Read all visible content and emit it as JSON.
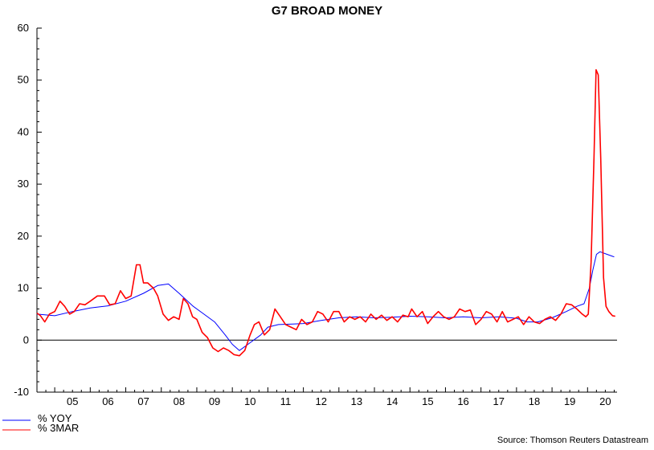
{
  "chart_data": {
    "type": "line",
    "title": "G7 BROAD MONEY",
    "source": "Source: Thomson Reuters Datastream",
    "yticks": [
      60,
      50,
      40,
      30,
      20,
      10,
      0,
      -10
    ],
    "ylim": [
      -10,
      60
    ],
    "xlim": [
      2004.5,
      2020.83
    ],
    "xticks": [
      "05",
      "06",
      "07",
      "08",
      "09",
      "10",
      "11",
      "12",
      "13",
      "14",
      "15",
      "16",
      "17",
      "18",
      "19",
      "20"
    ],
    "zero_line": true,
    "legend_position": "bottom-left",
    "series": [
      {
        "name": "% YOY",
        "color": "#0000ff",
        "points": [
          [
            2004.5,
            5.0
          ],
          [
            2005.0,
            4.7
          ],
          [
            2005.5,
            5.5
          ],
          [
            2006.0,
            6.2
          ],
          [
            2006.5,
            6.6
          ],
          [
            2007.0,
            7.5
          ],
          [
            2007.5,
            9.0
          ],
          [
            2007.9,
            10.5
          ],
          [
            2008.2,
            10.8
          ],
          [
            2008.5,
            9.0
          ],
          [
            2008.9,
            6.5
          ],
          [
            2009.2,
            5.0
          ],
          [
            2009.5,
            3.5
          ],
          [
            2009.8,
            1.0
          ],
          [
            2010.0,
            -0.8
          ],
          [
            2010.2,
            -2.0
          ],
          [
            2010.5,
            -0.5
          ],
          [
            2010.8,
            1.0
          ],
          [
            2011.0,
            2.5
          ],
          [
            2011.3,
            3.0
          ],
          [
            2011.7,
            3.1
          ],
          [
            2012.0,
            3.2
          ],
          [
            2012.5,
            3.8
          ],
          [
            2013.0,
            4.3
          ],
          [
            2013.5,
            4.5
          ],
          [
            2014.0,
            4.3
          ],
          [
            2014.5,
            4.4
          ],
          [
            2015.0,
            4.6
          ],
          [
            2015.5,
            4.5
          ],
          [
            2016.0,
            4.3
          ],
          [
            2016.5,
            4.5
          ],
          [
            2017.0,
            4.3
          ],
          [
            2017.5,
            4.5
          ],
          [
            2018.0,
            4.2
          ],
          [
            2018.3,
            3.5
          ],
          [
            2018.6,
            3.5
          ],
          [
            2019.0,
            4.3
          ],
          [
            2019.4,
            5.5
          ],
          [
            2019.7,
            6.5
          ],
          [
            2019.9,
            7.0
          ],
          [
            2020.05,
            10.0
          ],
          [
            2020.15,
            13.5
          ],
          [
            2020.25,
            16.5
          ],
          [
            2020.35,
            17.0
          ],
          [
            2020.55,
            16.5
          ],
          [
            2020.75,
            16.0
          ]
        ]
      },
      {
        "name": "% 3MAR",
        "color": "#ff0000",
        "points": [
          [
            2004.5,
            5.2
          ],
          [
            2004.6,
            4.7
          ],
          [
            2004.72,
            3.5
          ],
          [
            2004.85,
            5.0
          ],
          [
            2005.0,
            5.5
          ],
          [
            2005.15,
            7.5
          ],
          [
            2005.28,
            6.5
          ],
          [
            2005.42,
            5.0
          ],
          [
            2005.55,
            5.5
          ],
          [
            2005.7,
            7.0
          ],
          [
            2005.85,
            6.8
          ],
          [
            2006.0,
            7.5
          ],
          [
            2006.2,
            8.5
          ],
          [
            2006.4,
            8.5
          ],
          [
            2006.55,
            6.8
          ],
          [
            2006.7,
            7.0
          ],
          [
            2006.85,
            9.5
          ],
          [
            2007.0,
            8.0
          ],
          [
            2007.15,
            8.5
          ],
          [
            2007.3,
            14.5
          ],
          [
            2007.4,
            14.5
          ],
          [
            2007.5,
            11.0
          ],
          [
            2007.62,
            11.0
          ],
          [
            2007.78,
            10.0
          ],
          [
            2007.9,
            8.5
          ],
          [
            2008.05,
            5.0
          ],
          [
            2008.2,
            3.8
          ],
          [
            2008.35,
            4.5
          ],
          [
            2008.5,
            4.0
          ],
          [
            2008.62,
            8.0
          ],
          [
            2008.75,
            7.0
          ],
          [
            2008.88,
            4.5
          ],
          [
            2009.0,
            4.0
          ],
          [
            2009.15,
            1.5
          ],
          [
            2009.3,
            0.5
          ],
          [
            2009.45,
            -1.5
          ],
          [
            2009.6,
            -2.2
          ],
          [
            2009.75,
            -1.5
          ],
          [
            2009.9,
            -2.0
          ],
          [
            2010.05,
            -2.8
          ],
          [
            2010.2,
            -3.0
          ],
          [
            2010.35,
            -2.0
          ],
          [
            2010.5,
            1.0
          ],
          [
            2010.62,
            3.0
          ],
          [
            2010.75,
            3.5
          ],
          [
            2010.9,
            1.0
          ],
          [
            2011.05,
            2.0
          ],
          [
            2011.2,
            6.0
          ],
          [
            2011.35,
            4.5
          ],
          [
            2011.5,
            3.0
          ],
          [
            2011.65,
            2.5
          ],
          [
            2011.8,
            2.0
          ],
          [
            2011.95,
            4.0
          ],
          [
            2012.1,
            3.0
          ],
          [
            2012.25,
            3.5
          ],
          [
            2012.4,
            5.5
          ],
          [
            2012.55,
            5.0
          ],
          [
            2012.7,
            3.5
          ],
          [
            2012.85,
            5.5
          ],
          [
            2013.0,
            5.5
          ],
          [
            2013.15,
            3.5
          ],
          [
            2013.3,
            4.5
          ],
          [
            2013.45,
            4.0
          ],
          [
            2013.6,
            4.5
          ],
          [
            2013.75,
            3.5
          ],
          [
            2013.9,
            5.0
          ],
          [
            2014.05,
            4.0
          ],
          [
            2014.2,
            4.8
          ],
          [
            2014.35,
            3.8
          ],
          [
            2014.5,
            4.5
          ],
          [
            2014.65,
            3.5
          ],
          [
            2014.8,
            4.8
          ],
          [
            2014.95,
            4.5
          ],
          [
            2015.05,
            6.0
          ],
          [
            2015.2,
            4.5
          ],
          [
            2015.35,
            5.5
          ],
          [
            2015.5,
            3.2
          ],
          [
            2015.65,
            4.5
          ],
          [
            2015.8,
            5.5
          ],
          [
            2015.95,
            4.5
          ],
          [
            2016.1,
            4.0
          ],
          [
            2016.25,
            4.5
          ],
          [
            2016.4,
            6.0
          ],
          [
            2016.55,
            5.5
          ],
          [
            2016.7,
            5.8
          ],
          [
            2016.85,
            3.0
          ],
          [
            2017.0,
            4.0
          ],
          [
            2017.15,
            5.5
          ],
          [
            2017.3,
            5.0
          ],
          [
            2017.45,
            3.5
          ],
          [
            2017.6,
            5.5
          ],
          [
            2017.75,
            3.5
          ],
          [
            2017.9,
            4.0
          ],
          [
            2018.05,
            4.5
          ],
          [
            2018.2,
            3.0
          ],
          [
            2018.35,
            4.5
          ],
          [
            2018.5,
            3.5
          ],
          [
            2018.65,
            3.2
          ],
          [
            2018.8,
            4.0
          ],
          [
            2018.95,
            4.5
          ],
          [
            2019.1,
            3.8
          ],
          [
            2019.25,
            5.0
          ],
          [
            2019.4,
            7.0
          ],
          [
            2019.55,
            6.8
          ],
          [
            2019.7,
            6.0
          ],
          [
            2019.85,
            5.0
          ],
          [
            2019.95,
            4.5
          ],
          [
            2020.02,
            5.0
          ],
          [
            2020.1,
            15.0
          ],
          [
            2020.18,
            35.0
          ],
          [
            2020.24,
            52.0
          ],
          [
            2020.3,
            51.0
          ],
          [
            2020.37,
            35.0
          ],
          [
            2020.45,
            12.0
          ],
          [
            2020.52,
            6.5
          ],
          [
            2020.6,
            5.5
          ],
          [
            2020.7,
            4.7
          ],
          [
            2020.78,
            4.6
          ]
        ]
      }
    ]
  }
}
